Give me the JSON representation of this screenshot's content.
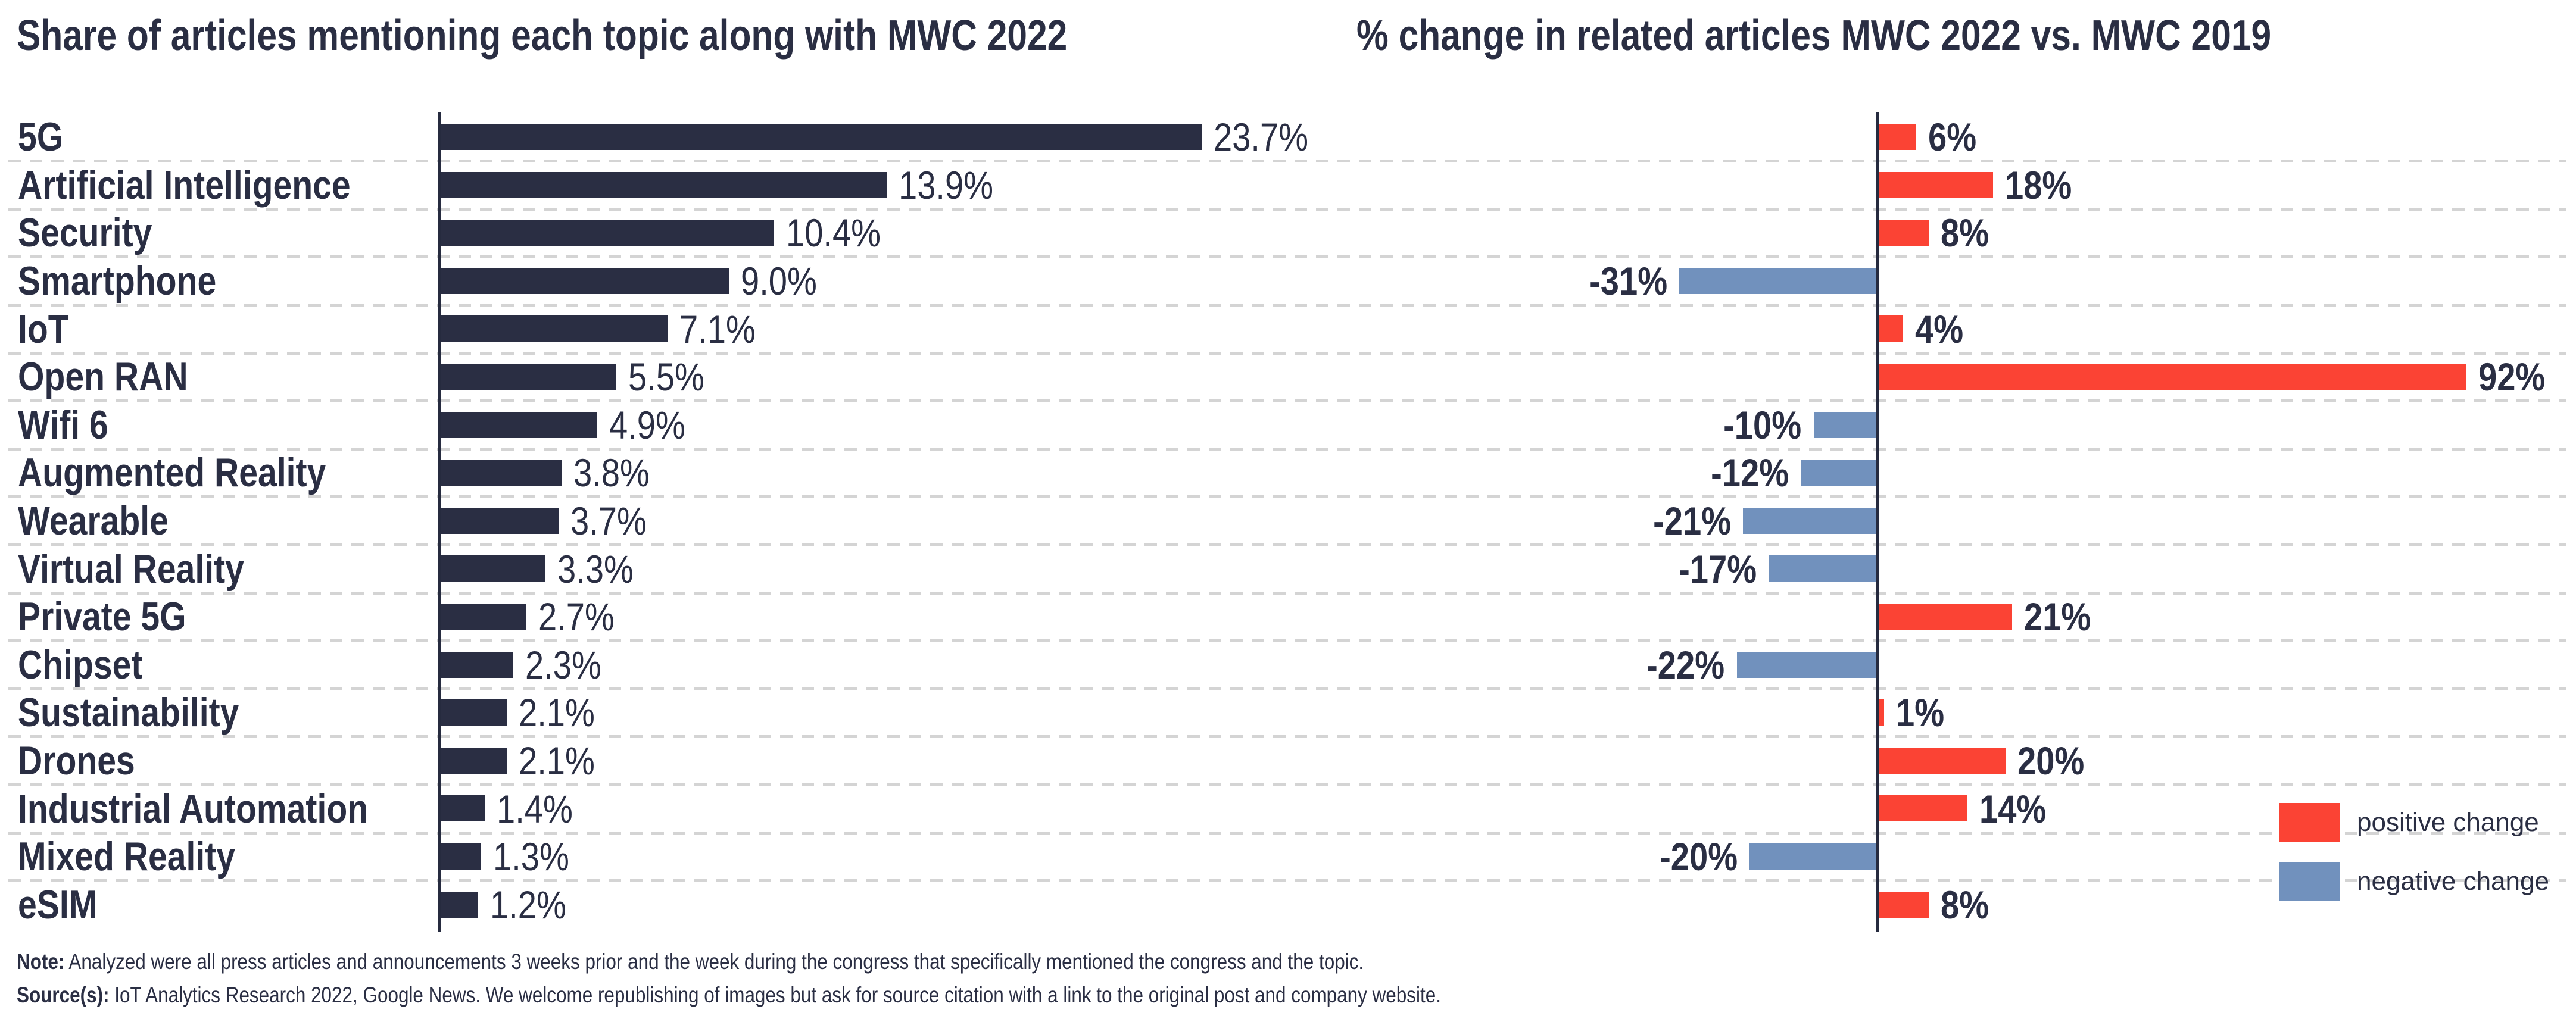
{
  "left_chart": {
    "title": "Share of articles mentioning each topic along with MWC 2022"
  },
  "right_chart": {
    "title": "% change in related articles MWC 2022 vs. MWC 2019"
  },
  "chart_data": {
    "type": "bar",
    "orientation": "horizontal",
    "grid": "dashed-horizontal",
    "categories": [
      "5G",
      "Artificial Intelligence",
      "Security",
      "Smartphone",
      "IoT",
      "Open RAN",
      "Wifi 6",
      "Augmented Reality",
      "Wearable",
      "Virtual Reality",
      "Private 5G",
      "Chipset",
      "Sustainability",
      "Drones",
      "Industrial Automation",
      "Mixed Reality",
      "eSIM"
    ],
    "series": [
      {
        "name": "Share of articles mentioning each topic along with MWC 2022",
        "unit": "%",
        "values": [
          23.7,
          13.9,
          10.4,
          9.0,
          7.1,
          5.5,
          4.9,
          3.8,
          3.7,
          3.3,
          2.7,
          2.3,
          2.1,
          2.1,
          1.4,
          1.3,
          1.2
        ],
        "labels": [
          "23.7%",
          "13.9%",
          "10.4%",
          "9.0%",
          "7.1%",
          "5.5%",
          "4.9%",
          "3.8%",
          "3.7%",
          "3.3%",
          "2.7%",
          "2.3%",
          "2.1%",
          "2.1%",
          "1.4%",
          "1.3%",
          "1.2%"
        ],
        "color": "#2A2E43",
        "xlim": [
          0,
          25
        ]
      },
      {
        "name": "% change in related articles MWC 2022 vs. MWC 2019",
        "unit": "%",
        "values": [
          6,
          18,
          8,
          -31,
          4,
          92,
          -10,
          -12,
          -21,
          -17,
          21,
          -22,
          1,
          20,
          14,
          -20,
          8
        ],
        "labels": [
          "6%",
          "18%",
          "8%",
          "-31%",
          "4%",
          "92%",
          "-10%",
          "-12%",
          "-21%",
          "-17%",
          "21%",
          "-22%",
          "1%",
          "20%",
          "14%",
          "-20%",
          "8%"
        ],
        "positive_color": "#FB4334",
        "negative_color": "#7191BD",
        "xlim": [
          -35,
          95
        ]
      }
    ]
  },
  "legend": {
    "position": "bottom-right",
    "items": [
      {
        "label": "positive change",
        "color": "#FB4334"
      },
      {
        "label": "negative change",
        "color": "#7191BD"
      }
    ]
  },
  "notes": [
    {
      "lead": "Note:",
      "text": " Analyzed were all press articles and announcements 3 weeks prior and the week during the congress that specifically mentioned the congress and the topic."
    },
    {
      "lead": "Source(s):",
      "text": " IoT Analytics Research 2022, Google News. We welcome republishing of images but ask for source citation with a link to the original post and company website."
    }
  ],
  "colors": {
    "bar_navy": "#2A2E43",
    "positive_red": "#FB4334",
    "negative_blue": "#7191BD",
    "text_navy": "#2A2E43",
    "gridline_gray": "#D4D4D4",
    "axis_navy": "#262B3F",
    "background": "#FFFFFF"
  }
}
